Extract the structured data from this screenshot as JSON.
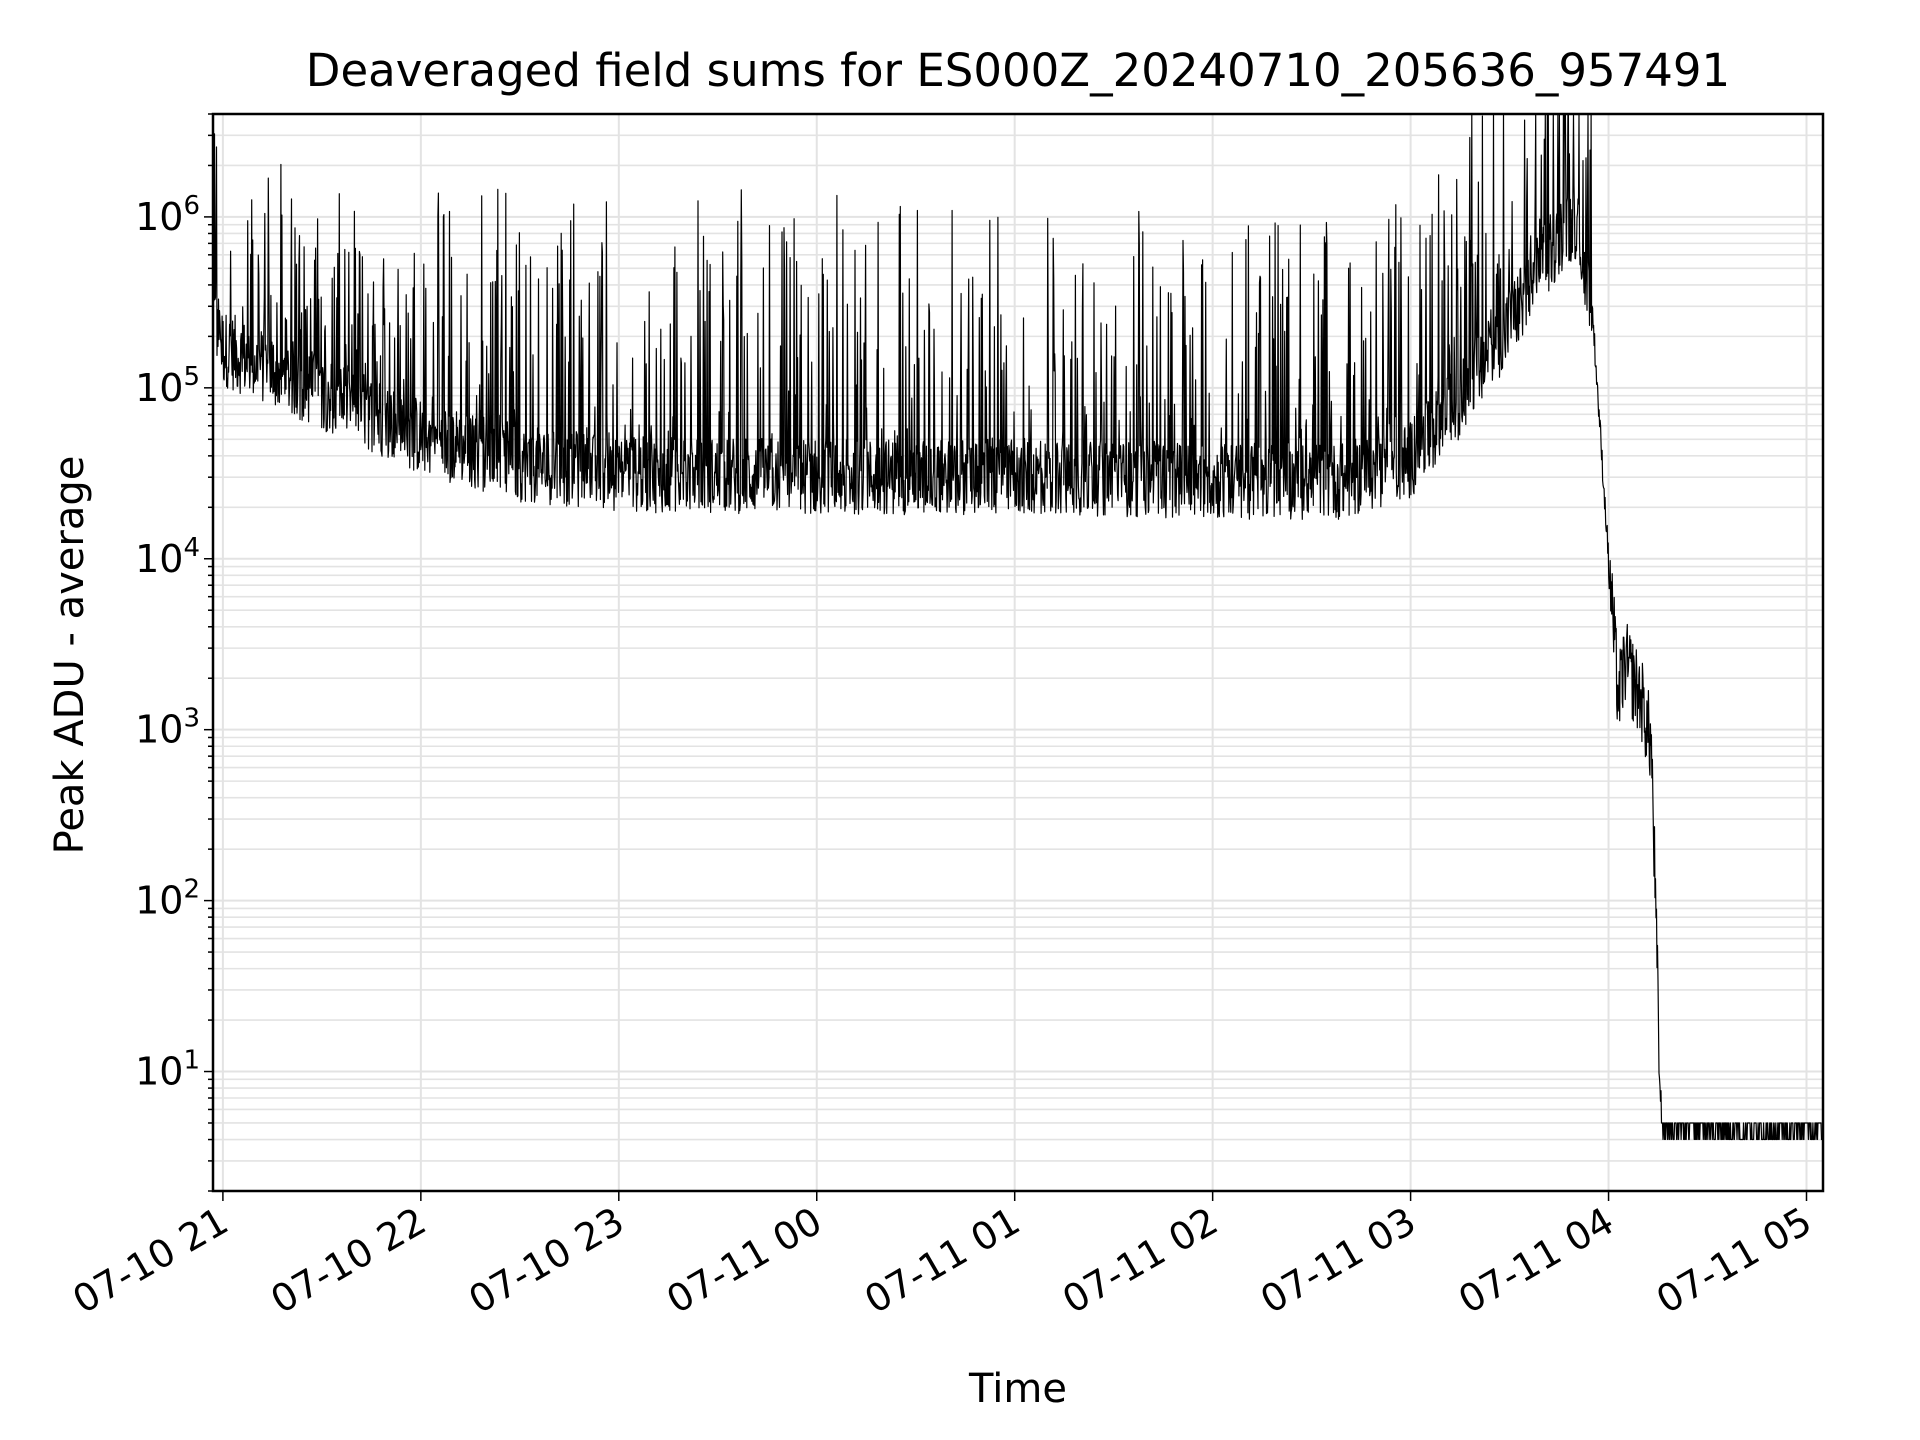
{
  "chart_data": {
    "type": "line",
    "title": "Deaveraged field sums for ES000Z_20240710_205636_957491",
    "xlabel": "Time",
    "ylabel": "Peak ADU - average",
    "yscale": "log",
    "ylim": [
      2,
      4000000
    ],
    "xlim": [
      "2024-07-10 20:57",
      "2024-07-11 05:05"
    ],
    "grid": true,
    "line_color": "#000000",
    "grid_color": "#e3e3e3",
    "x_ticks": [
      {
        "value": "2024-07-10 21:00",
        "label": "07-10 21"
      },
      {
        "value": "2024-07-10 22:00",
        "label": "07-10 22"
      },
      {
        "value": "2024-07-10 23:00",
        "label": "07-10 23"
      },
      {
        "value": "2024-07-11 00:00",
        "label": "07-11 00"
      },
      {
        "value": "2024-07-11 01:00",
        "label": "07-11 01"
      },
      {
        "value": "2024-07-11 02:00",
        "label": "07-11 02"
      },
      {
        "value": "2024-07-11 03:00",
        "label": "07-11 03"
      },
      {
        "value": "2024-07-11 04:00",
        "label": "07-11 04"
      },
      {
        "value": "2024-07-11 05:00",
        "label": "07-11 05"
      }
    ],
    "y_ticks": [
      {
        "value": 10,
        "base": "10",
        "exp": "1"
      },
      {
        "value": 100,
        "base": "10",
        "exp": "2"
      },
      {
        "value": 1000,
        "base": "10",
        "exp": "3"
      },
      {
        "value": 10000,
        "base": "10",
        "exp": "4"
      },
      {
        "value": 100000,
        "base": "10",
        "exp": "5"
      },
      {
        "value": 1000000,
        "base": "10",
        "exp": "6"
      }
    ],
    "baseline": {
      "time": "2024-07-11 02:30",
      "value": 40000
    },
    "envelope": [
      {
        "time": "2024-07-10 20:57",
        "value": 300000
      },
      {
        "time": "2024-07-10 21:00",
        "value": 180000
      },
      {
        "time": "2024-07-10 21:30",
        "value": 100000
      },
      {
        "time": "2024-07-10 22:00",
        "value": 55000
      },
      {
        "time": "2024-07-10 22:30",
        "value": 38000
      },
      {
        "time": "2024-07-10 23:00",
        "value": 33000
      },
      {
        "time": "2024-07-11 00:00",
        "value": 32000
      },
      {
        "time": "2024-07-11 01:00",
        "value": 32000
      },
      {
        "time": "2024-07-11 02:00",
        "value": 30000
      },
      {
        "time": "2024-07-11 02:40",
        "value": 30000
      },
      {
        "time": "2024-07-11 03:00",
        "value": 40000
      },
      {
        "time": "2024-07-11 03:15",
        "value": 90000
      },
      {
        "time": "2024-07-11 03:30",
        "value": 250000
      },
      {
        "time": "2024-07-11 03:45",
        "value": 800000
      },
      {
        "time": "2024-07-11 03:50",
        "value": 1000000
      },
      {
        "time": "2024-07-11 03:55",
        "value": 300000
      },
      {
        "time": "2024-07-11 04:00",
        "value": 10000
      },
      {
        "time": "2024-07-11 04:03",
        "value": 1500
      },
      {
        "time": "2024-07-11 04:05",
        "value": 2500
      },
      {
        "time": "2024-07-11 04:10",
        "value": 1500
      },
      {
        "time": "2024-07-11 04:13",
        "value": 800
      },
      {
        "time": "2024-07-11 04:16",
        "value": 4
      },
      {
        "time": "2024-07-11 05:05",
        "value": 4
      }
    ]
  }
}
